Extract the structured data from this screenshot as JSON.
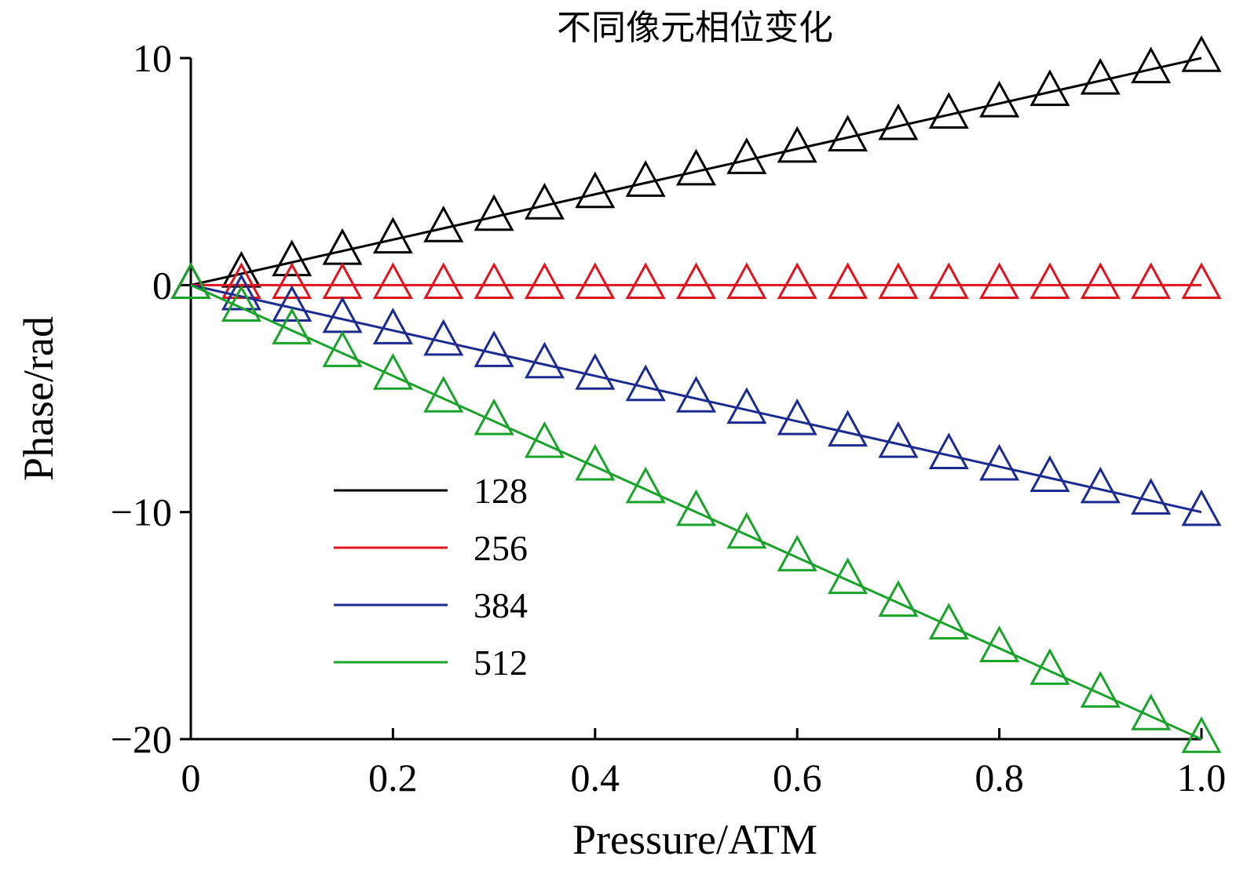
{
  "chart_data": {
    "type": "line",
    "title": "不同像元相位变化",
    "xlabel": "Pressure/ATM",
    "ylabel": "Phase/rad",
    "xlim": [
      0,
      1.0
    ],
    "ylim": [
      -20,
      10
    ],
    "xticks": [
      0,
      0.2,
      0.4,
      0.6,
      0.8,
      1.0
    ],
    "xtick_labels": [
      "0",
      "0.2",
      "0.4",
      "0.6",
      "0.8",
      "1.0"
    ],
    "yticks": [
      10,
      0,
      -10,
      -20
    ],
    "ytick_labels": [
      "10",
      "0",
      "−10",
      "−20"
    ],
    "grid": false,
    "legend_position": "lower-left",
    "marker": "triangle",
    "x": [
      0,
      0.05,
      0.1,
      0.15,
      0.2,
      0.25,
      0.3,
      0.35,
      0.4,
      0.45,
      0.5,
      0.55,
      0.6,
      0.65,
      0.7,
      0.75,
      0.8,
      0.85,
      0.9,
      0.95,
      1.0
    ],
    "series": [
      {
        "name": "128",
        "color": "#000000",
        "values": [
          0,
          0.5,
          1.0,
          1.5,
          2.0,
          2.5,
          3.0,
          3.5,
          4.0,
          4.5,
          5.0,
          5.5,
          6.0,
          6.5,
          7.0,
          7.5,
          8.0,
          8.5,
          9.0,
          9.5,
          10.0
        ]
      },
      {
        "name": "256",
        "color": "#e0141e",
        "values": [
          0,
          0,
          0,
          0,
          0,
          0,
          0,
          0,
          0,
          0,
          0,
          0,
          0,
          0,
          0,
          0,
          0,
          0,
          0,
          0,
          0
        ]
      },
      {
        "name": "384",
        "color": "#1c2b8f",
        "values": [
          0,
          -0.5,
          -1.0,
          -1.5,
          -2.0,
          -2.5,
          -3.0,
          -3.5,
          -4.0,
          -4.5,
          -5.0,
          -5.5,
          -6.0,
          -6.5,
          -7.0,
          -7.5,
          -8.0,
          -8.5,
          -9.0,
          -9.5,
          -10.0
        ]
      },
      {
        "name": "512",
        "color": "#1aa32a",
        "values": [
          0,
          -1.0,
          -2.0,
          -3.0,
          -4.0,
          -5.0,
          -6.0,
          -7.0,
          -8.0,
          -9.0,
          -10.0,
          -11.0,
          -12.0,
          -13.0,
          -14.0,
          -15.0,
          -16.0,
          -17.0,
          -18.0,
          -19.0,
          -20.0
        ]
      }
    ]
  }
}
